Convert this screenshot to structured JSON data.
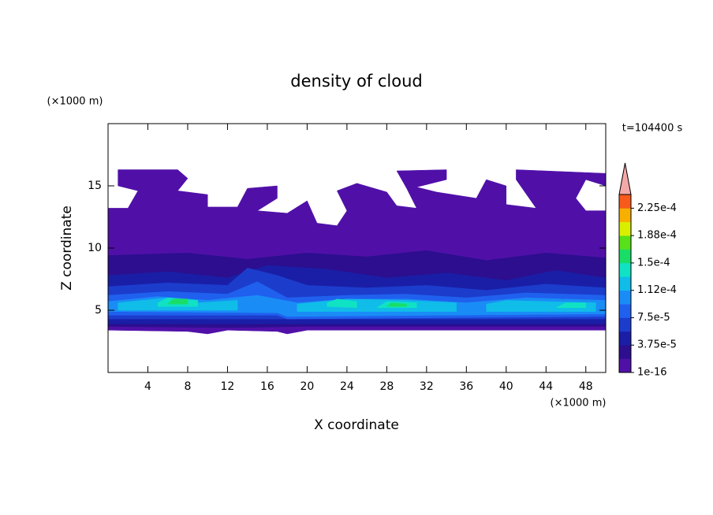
{
  "chart_data": {
    "type": "contour",
    "title": "density of cloud",
    "x_label": "X coordinate",
    "y_label": "Z coordinate",
    "x_unit": "(×1000 m)",
    "y_unit": "(×1000 m)",
    "time_label": "t=104400 s",
    "xlim": [
      0,
      50
    ],
    "xticks": [
      4,
      8,
      12,
      16,
      20,
      24,
      28,
      32,
      36,
      40,
      44,
      48
    ],
    "ylim": [
      0,
      20
    ],
    "yticks": [
      5,
      10,
      15
    ],
    "clim": [
      1e-16,
      0.00024375
    ],
    "cticks": [
      {
        "value": 1e-16,
        "label": "1e-16"
      },
      {
        "value": 3.75e-05,
        "label": "3.75e-5"
      },
      {
        "value": 7.5e-05,
        "label": "7.5e-5"
      },
      {
        "value": 0.0001125,
        "label": "1.12e-4"
      },
      {
        "value": 0.00015,
        "label": "1.5e-4"
      },
      {
        "value": 0.0001875,
        "label": "1.88e-4"
      },
      {
        "value": 0.000225,
        "label": "2.25e-4"
      }
    ],
    "colors": [
      "#5010a8",
      "#2c0e8e",
      "#1a1ea6",
      "#1c3ccc",
      "#2060ee",
      "#1a8cf6",
      "#10bce8",
      "#10e2c4",
      "#18de68",
      "#58e018",
      "#d8f000",
      "#f8b000",
      "#f85a1c"
    ],
    "extend_color": "#f4a8a8",
    "regions": [
      {
        "level": 0,
        "points": [
          [
            0,
            3.4
          ],
          [
            8,
            3.3
          ],
          [
            10,
            3.1
          ],
          [
            12,
            3.4
          ],
          [
            17,
            3.3
          ],
          [
            18,
            3.1
          ],
          [
            20,
            3.4
          ],
          [
            50,
            3.4
          ],
          [
            50,
            10.5
          ],
          [
            38,
            10.6
          ],
          [
            36,
            9.6
          ],
          [
            34,
            10.6
          ],
          [
            20,
            10.6
          ],
          [
            16,
            10.3
          ],
          [
            0,
            10.2
          ]
        ]
      },
      {
        "level": 0,
        "points": [
          [
            0,
            10
          ],
          [
            0,
            13.2
          ],
          [
            2,
            13.2
          ],
          [
            3,
            14.6
          ],
          [
            1,
            15
          ],
          [
            1,
            16.3
          ],
          [
            7,
            16.3
          ],
          [
            8,
            15.6
          ],
          [
            7,
            14.6
          ],
          [
            10,
            14.3
          ],
          [
            10,
            13.3
          ],
          [
            13,
            13.3
          ],
          [
            14,
            14.8
          ],
          [
            17,
            15
          ],
          [
            17,
            14
          ],
          [
            15,
            13
          ],
          [
            18,
            12.8
          ],
          [
            20,
            13.8
          ],
          [
            21,
            12
          ],
          [
            23,
            11.8
          ],
          [
            24,
            13
          ],
          [
            23,
            14.6
          ],
          [
            25,
            15.2
          ],
          [
            28,
            14.5
          ],
          [
            29,
            13.4
          ],
          [
            31,
            13.2
          ],
          [
            30,
            14.8
          ],
          [
            29,
            16.2
          ],
          [
            34,
            16.3
          ],
          [
            34,
            15.5
          ],
          [
            31,
            14.9
          ],
          [
            33,
            14.5
          ],
          [
            37,
            14
          ],
          [
            38,
            15.5
          ],
          [
            40,
            15
          ],
          [
            40,
            13.5
          ],
          [
            43,
            13.2
          ],
          [
            41,
            15.5
          ],
          [
            41,
            16.3
          ],
          [
            50,
            16
          ],
          [
            50,
            15
          ],
          [
            48,
            15.5
          ],
          [
            47,
            14
          ],
          [
            48,
            13
          ],
          [
            50,
            13
          ],
          [
            50,
            10.5
          ],
          [
            38,
            10.5
          ],
          [
            36,
            9.6
          ],
          [
            34,
            10.5
          ],
          [
            20,
            10.5
          ],
          [
            16,
            10.2
          ]
        ]
      },
      {
        "level": 1,
        "points": [
          [
            0,
            3.7
          ],
          [
            12,
            3.6
          ],
          [
            20,
            3.7
          ],
          [
            50,
            3.7
          ],
          [
            50,
            9.2
          ],
          [
            44,
            9.6
          ],
          [
            38,
            9.0
          ],
          [
            32,
            9.8
          ],
          [
            26,
            9.3
          ],
          [
            20,
            9.6
          ],
          [
            14,
            9.1
          ],
          [
            8,
            9.6
          ],
          [
            0,
            9.4
          ]
        ]
      },
      {
        "level": 2,
        "points": [
          [
            0,
            3.9
          ],
          [
            50,
            3.9
          ],
          [
            50,
            7.6
          ],
          [
            45,
            8.2
          ],
          [
            40,
            7.4
          ],
          [
            34,
            8.0
          ],
          [
            28,
            7.6
          ],
          [
            22,
            8.3
          ],
          [
            16,
            8.6
          ],
          [
            12,
            7.6
          ],
          [
            6,
            8.1
          ],
          [
            0,
            7.8
          ]
        ]
      },
      {
        "level": 3,
        "points": [
          [
            0,
            4.3
          ],
          [
            50,
            4.3
          ],
          [
            50,
            6.8
          ],
          [
            44,
            7.1
          ],
          [
            38,
            6.6
          ],
          [
            32,
            7.0
          ],
          [
            26,
            6.8
          ],
          [
            20,
            7.0
          ],
          [
            17,
            7.8
          ],
          [
            14,
            8.4
          ],
          [
            12,
            7.0
          ],
          [
            6,
            7.2
          ],
          [
            0,
            6.9
          ]
        ]
      },
      {
        "level": 4,
        "points": [
          [
            0,
            4.6
          ],
          [
            17,
            4.6
          ],
          [
            18,
            4.3
          ],
          [
            50,
            4.5
          ],
          [
            50,
            6.2
          ],
          [
            42,
            6.4
          ],
          [
            36,
            6.0
          ],
          [
            30,
            6.3
          ],
          [
            24,
            6.2
          ],
          [
            18,
            6.0
          ],
          [
            15,
            7.3
          ],
          [
            12,
            6.3
          ],
          [
            6,
            6.5
          ],
          [
            0,
            6.2
          ]
        ]
      },
      {
        "level": 5,
        "points": [
          [
            0,
            4.9
          ],
          [
            17,
            4.8
          ],
          [
            18,
            4.5
          ],
          [
            50,
            4.7
          ],
          [
            50,
            5.8
          ],
          [
            42,
            6.0
          ],
          [
            36,
            5.6
          ],
          [
            30,
            5.9
          ],
          [
            24,
            5.9
          ],
          [
            19,
            5.6
          ],
          [
            15,
            6.2
          ],
          [
            10,
            5.8
          ],
          [
            5,
            6.1
          ],
          [
            0,
            5.7
          ]
        ]
      },
      {
        "level": 6,
        "points": [
          [
            1,
            5.0
          ],
          [
            13,
            5.0
          ],
          [
            13,
            5.8
          ],
          [
            9,
            5.6
          ],
          [
            6,
            6.0
          ],
          [
            1,
            5.6
          ]
        ]
      },
      {
        "level": 6,
        "points": [
          [
            19,
            4.9
          ],
          [
            35,
            4.9
          ],
          [
            35,
            5.6
          ],
          [
            30,
            5.8
          ],
          [
            24,
            5.9
          ],
          [
            19,
            5.5
          ]
        ]
      },
      {
        "level": 6,
        "points": [
          [
            38,
            4.9
          ],
          [
            49,
            4.9
          ],
          [
            49,
            5.6
          ],
          [
            44,
            5.7
          ],
          [
            40,
            5.8
          ],
          [
            38,
            5.5
          ]
        ]
      },
      {
        "level": 7,
        "points": [
          [
            5,
            5.3
          ],
          [
            9,
            5.3
          ],
          [
            9,
            5.8
          ],
          [
            6,
            6.0
          ],
          [
            5,
            5.6
          ]
        ]
      },
      {
        "level": 7,
        "points": [
          [
            22,
            5.3
          ],
          [
            25,
            5.2
          ],
          [
            25,
            5.7
          ],
          [
            23,
            5.9
          ],
          [
            22,
            5.6
          ]
        ]
      },
      {
        "level": 7,
        "points": [
          [
            27,
            5.2
          ],
          [
            31,
            5.2
          ],
          [
            31,
            5.6
          ],
          [
            28,
            5.7
          ]
        ]
      },
      {
        "level": 7,
        "points": [
          [
            45,
            5.2
          ],
          [
            48,
            5.2
          ],
          [
            48,
            5.6
          ],
          [
            46,
            5.6
          ]
        ]
      },
      {
        "level": 8,
        "points": [
          [
            6,
            5.5
          ],
          [
            8,
            5.5
          ],
          [
            8,
            5.9
          ],
          [
            6.5,
            5.9
          ]
        ]
      },
      {
        "level": 8,
        "points": [
          [
            28,
            5.3
          ],
          [
            30,
            5.3
          ],
          [
            30,
            5.5
          ],
          [
            28.5,
            5.6
          ]
        ]
      }
    ]
  }
}
